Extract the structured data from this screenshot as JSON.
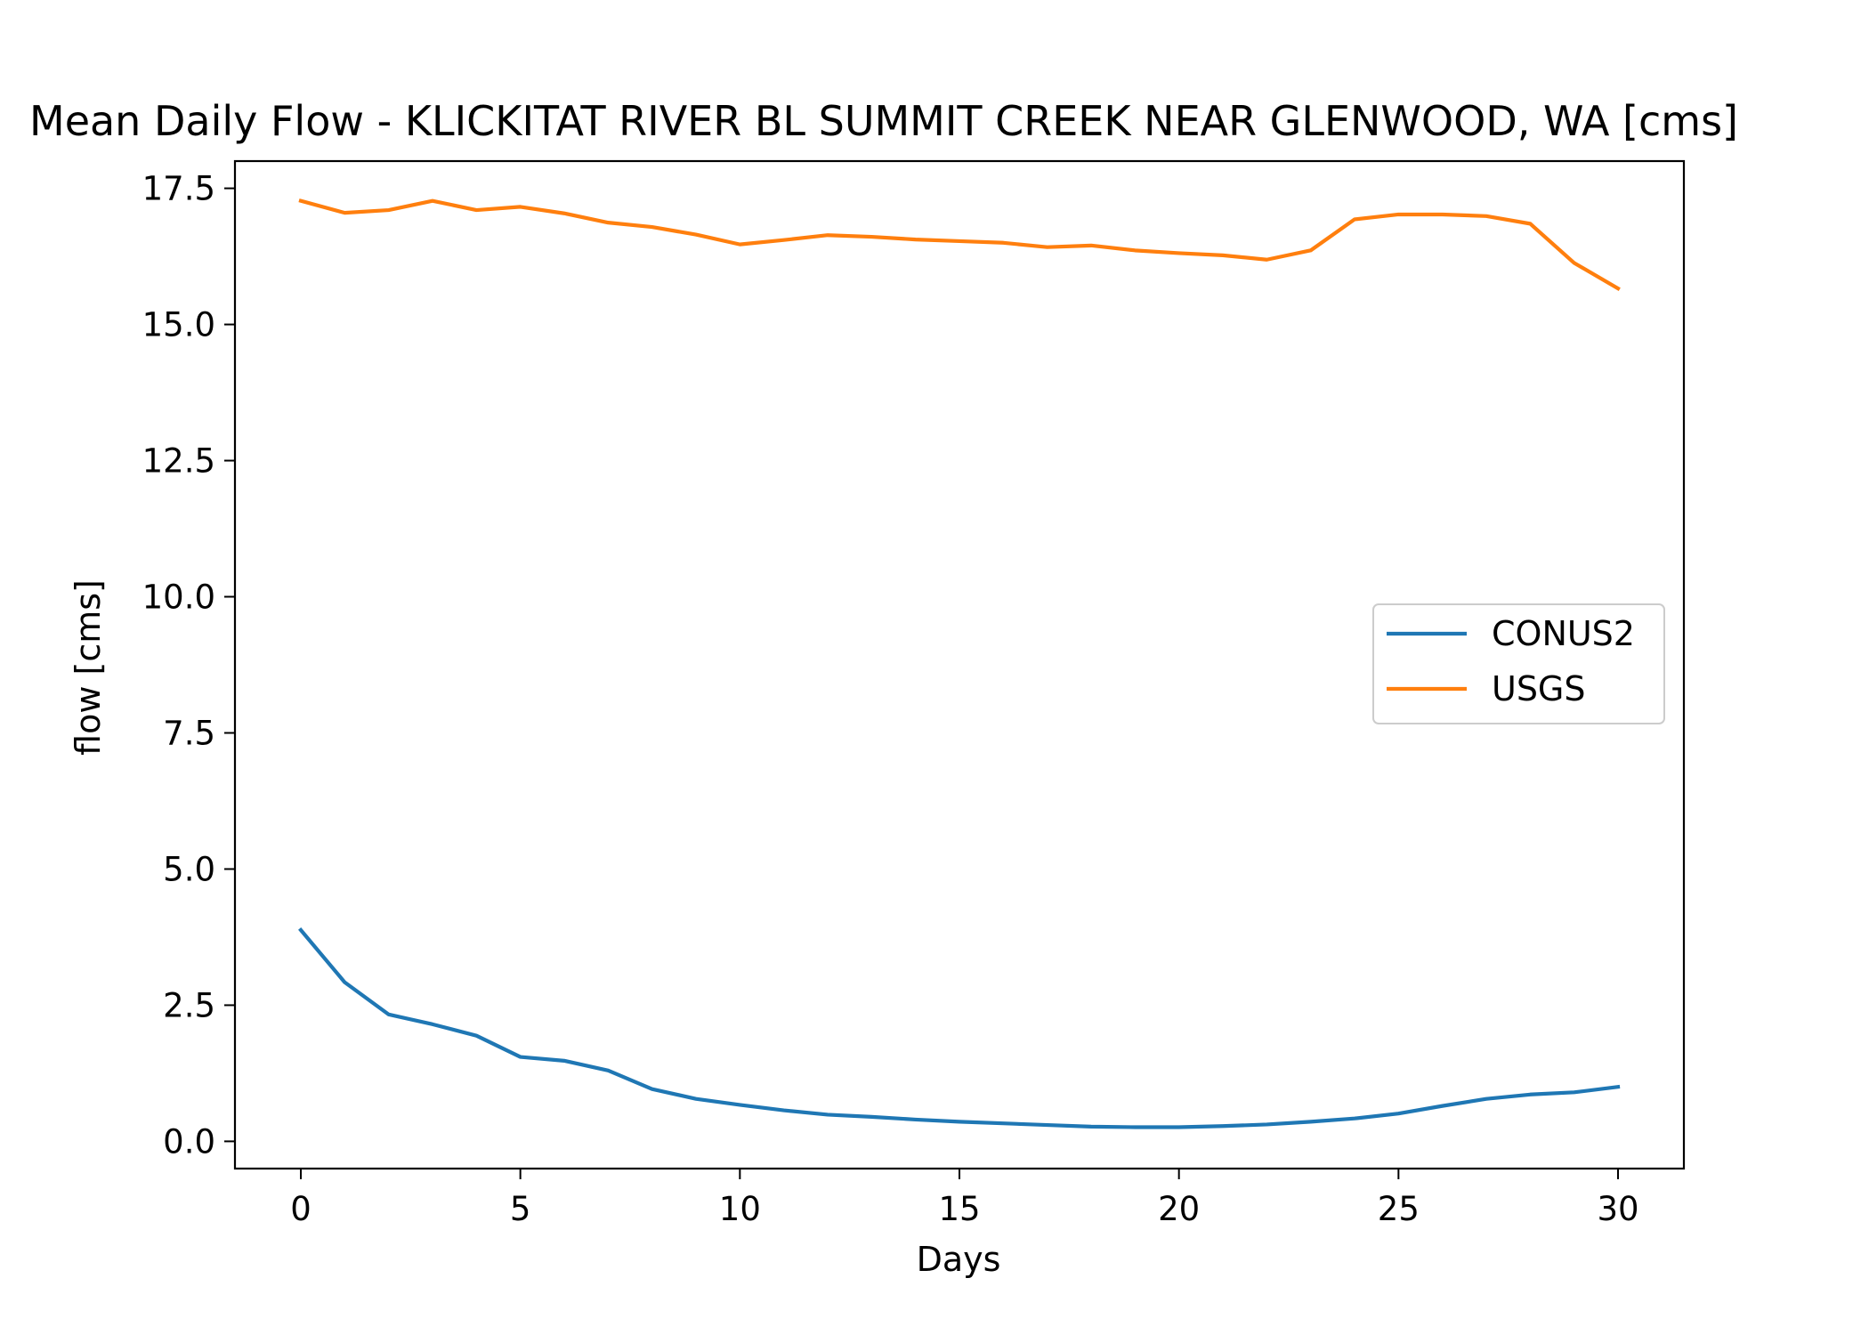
{
  "chart_data": {
    "type": "line",
    "title": "Mean Daily Flow - KLICKITAT RIVER BL SUMMIT CREEK NEAR GLENWOOD, WA [cms]",
    "xlabel": "Days",
    "ylabel": "flow [cms]",
    "xlim": [
      -1.5,
      31.5
    ],
    "ylim": [
      -0.5,
      18.0
    ],
    "xticks": [
      0,
      5,
      10,
      15,
      20,
      25,
      30
    ],
    "xtick_labels": [
      "0",
      "5",
      "10",
      "15",
      "20",
      "25",
      "30"
    ],
    "yticks": [
      0.0,
      2.5,
      5.0,
      7.5,
      10.0,
      12.5,
      15.0,
      17.5
    ],
    "ytick_labels": [
      "0.0",
      "2.5",
      "5.0",
      "7.5",
      "10.0",
      "12.5",
      "15.0",
      "17.5"
    ],
    "grid": false,
    "legend_position": "center-right",
    "x": [
      0,
      1,
      2,
      3,
      4,
      5,
      6,
      7,
      8,
      9,
      10,
      11,
      12,
      13,
      14,
      15,
      16,
      17,
      18,
      19,
      20,
      21,
      22,
      23,
      24,
      25,
      26,
      27,
      28,
      29,
      30
    ],
    "series": [
      {
        "name": "CONUS2",
        "color": "#1f77b4",
        "values": [
          3.88,
          2.92,
          2.33,
          2.15,
          1.94,
          1.55,
          1.48,
          1.3,
          0.96,
          0.78,
          0.67,
          0.57,
          0.49,
          0.45,
          0.4,
          0.36,
          0.33,
          0.3,
          0.27,
          0.26,
          0.26,
          0.28,
          0.31,
          0.36,
          0.42,
          0.51,
          0.65,
          0.78,
          0.86,
          0.9,
          1.0
        ]
      },
      {
        "name": "USGS",
        "color": "#ff7f0e",
        "values": [
          17.27,
          17.05,
          17.1,
          17.27,
          17.1,
          17.16,
          17.04,
          16.87,
          16.79,
          16.65,
          16.47,
          16.55,
          16.64,
          16.61,
          16.56,
          16.53,
          16.5,
          16.42,
          16.45,
          16.36,
          16.31,
          16.27,
          16.19,
          16.36,
          16.93,
          17.02,
          17.02,
          16.99,
          16.85,
          16.13,
          15.66
        ]
      }
    ]
  }
}
